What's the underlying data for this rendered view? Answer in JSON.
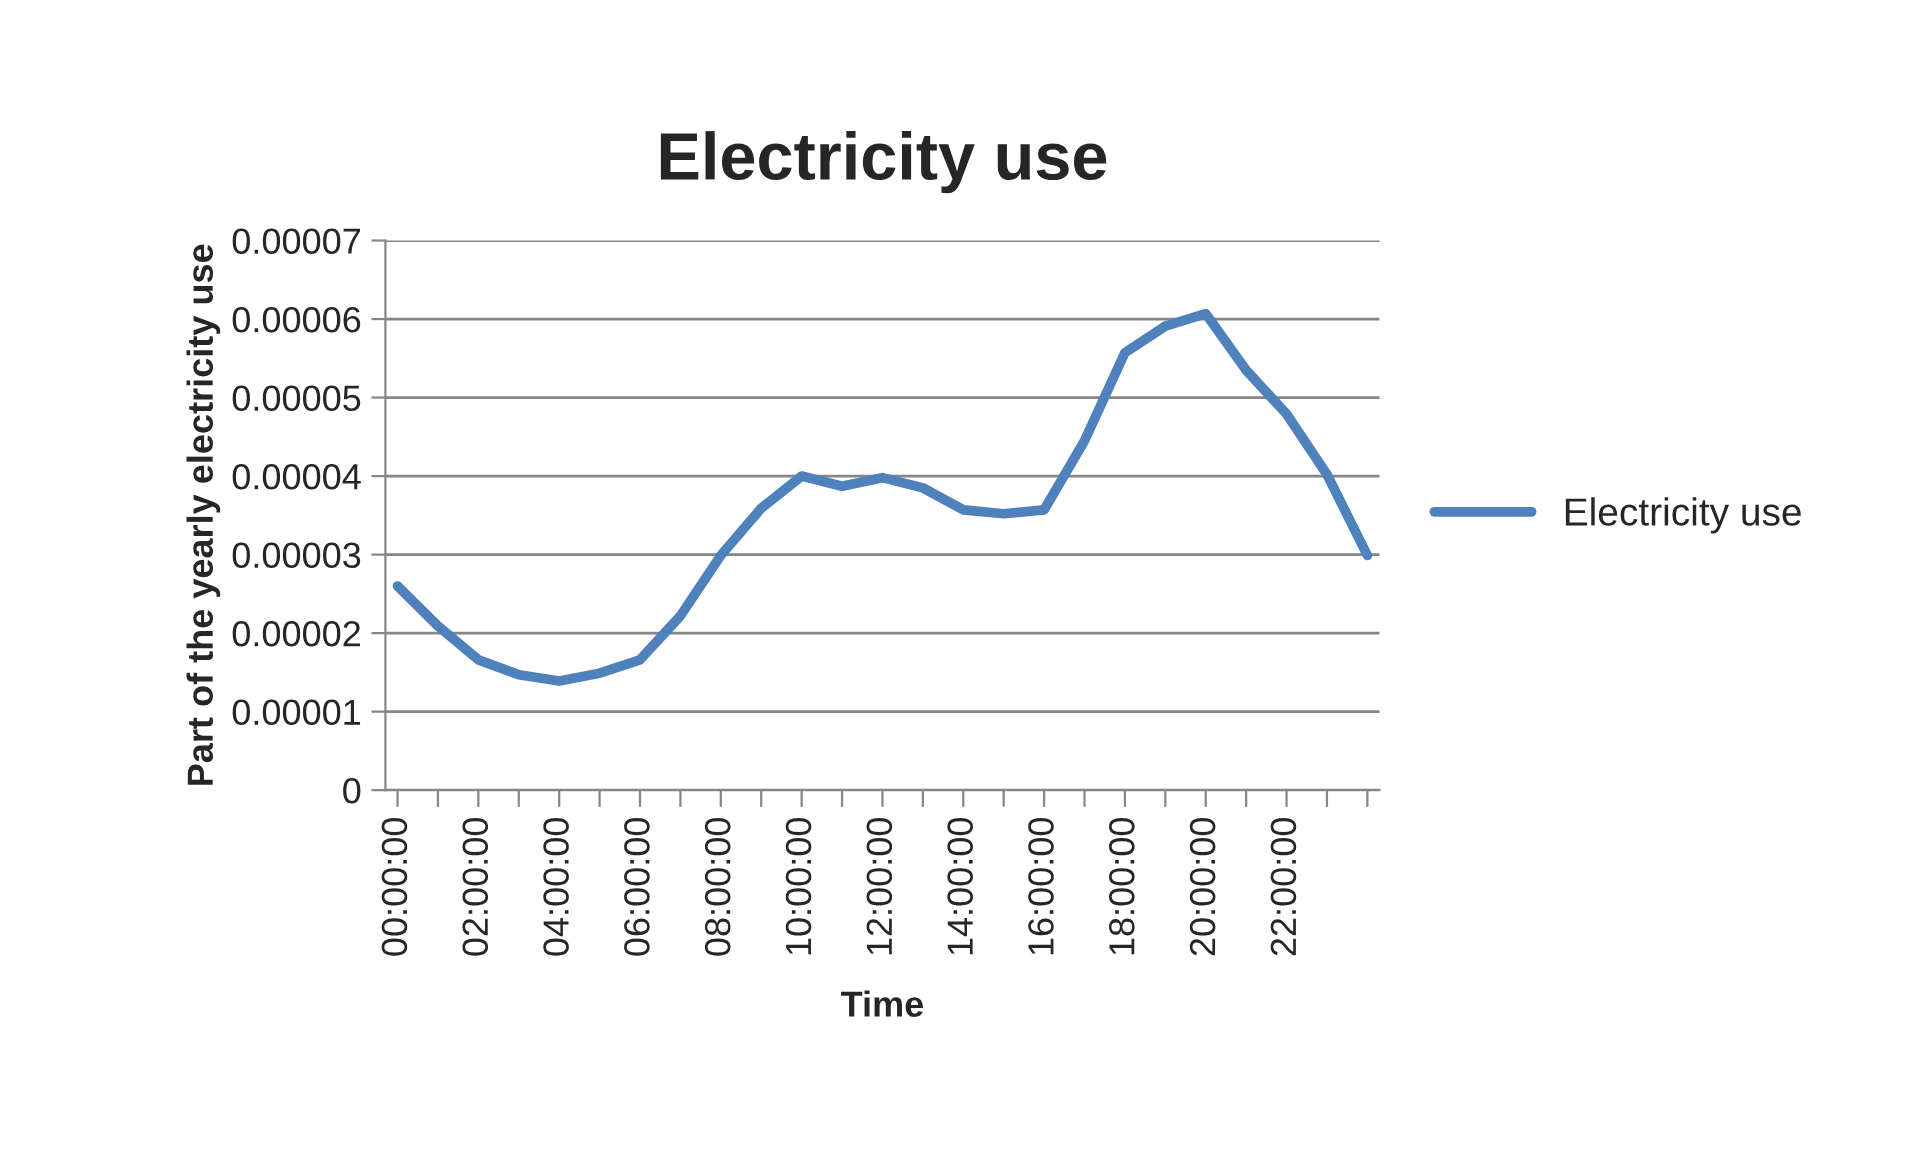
{
  "chart_data": {
    "type": "line",
    "title": "Electricity use",
    "xlabel": "Time",
    "ylabel": "Part of the yearly electricity use",
    "categories": [
      "00:00:00",
      null,
      "02:00:00",
      null,
      "04:00:00",
      null,
      "06:00:00",
      null,
      "08:00:00",
      null,
      "10:00:00",
      null,
      "12:00:00",
      null,
      "14:00:00",
      null,
      "16:00:00",
      null,
      "18:00:00",
      null,
      "20:00:00",
      null,
      "22:00:00",
      null,
      null
    ],
    "series": [
      {
        "name": "Electricity use",
        "color": "#4f81bd",
        "values": [
          2.6e-05,
          2.09e-05,
          1.66e-05,
          1.47e-05,
          1.39e-05,
          1.49e-05,
          1.66e-05,
          2.22e-05,
          2.99e-05,
          3.59e-05,
          4e-05,
          3.87e-05,
          3.98e-05,
          3.85e-05,
          3.57e-05,
          3.52e-05,
          3.57e-05,
          4.45e-05,
          5.57e-05,
          5.91e-05,
          6.07e-05,
          5.35e-05,
          4.79e-05,
          4.02e-05,
          2.99e-05
        ]
      }
    ],
    "ylim": [
      0,
      7e-05
    ],
    "yticks": [
      0,
      {
        "value": 1e-05,
        "label": "0.00001"
      },
      {
        "value": 2e-05,
        "label": "0.00002"
      },
      {
        "value": 3e-05,
        "label": "0.00003"
      },
      {
        "value": 4e-05,
        "label": "0.00004"
      },
      {
        "value": 5e-05,
        "label": "0.00005"
      },
      {
        "value": 6e-05,
        "label": "0.00006"
      },
      {
        "value": 7e-05,
        "label": "0.00007"
      }
    ],
    "grid": "y",
    "legend": "right",
    "marker": "none",
    "line_style": "solid"
  }
}
